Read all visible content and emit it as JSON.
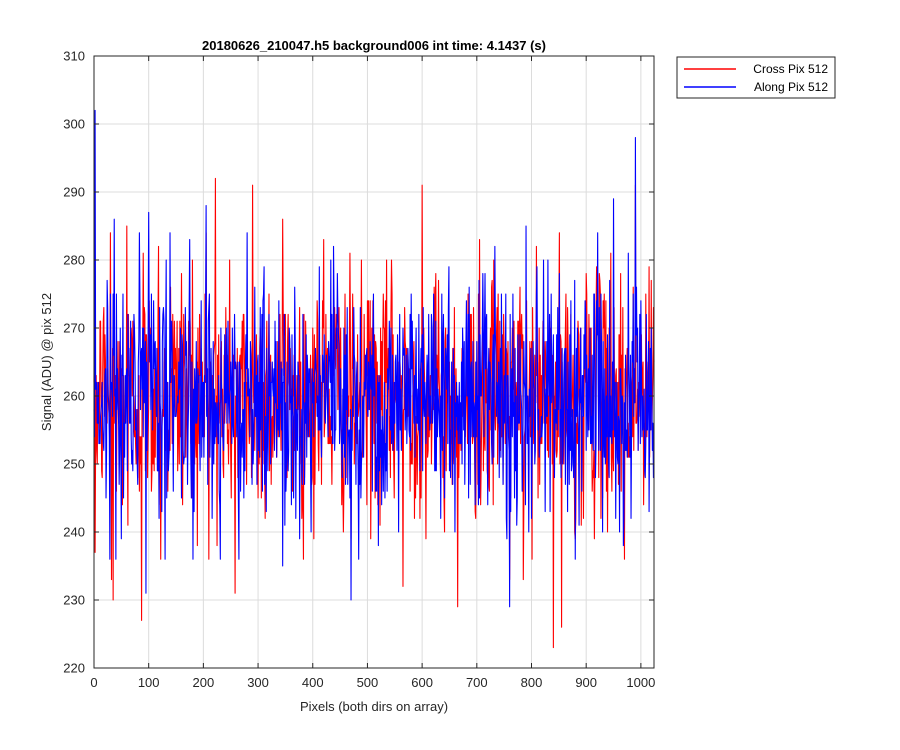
{
  "chart_data": {
    "type": "line",
    "title": "20180626_210047.h5  background006   int time: 4.1437 (s)",
    "xlabel": "Pixels (both dirs on array)",
    "ylabel": "Signal (ADU) @ pix 512",
    "xlim": [
      0,
      1024
    ],
    "ylim": [
      220,
      310
    ],
    "xticks": [
      0,
      100,
      200,
      300,
      400,
      500,
      600,
      700,
      800,
      900,
      1000
    ],
    "yticks": [
      220,
      230,
      240,
      250,
      260,
      270,
      280,
      290,
      300,
      310
    ],
    "grid": true,
    "legend_position": "outside-top-right",
    "noise_model": "approx. normal, mean ~260 ADU, sd ~9 ADU",
    "series": [
      {
        "name": "Cross Pix 512",
        "color": "#ff0000",
        "points": [
          [
            0,
            262
          ],
          [
            2,
            237
          ],
          [
            5,
            252
          ],
          [
            30,
            284
          ],
          [
            32,
            233
          ],
          [
            35,
            230
          ],
          [
            60,
            285
          ],
          [
            62,
            241
          ],
          [
            87,
            227
          ],
          [
            90,
            281
          ],
          [
            118,
            282
          ],
          [
            122,
            236
          ],
          [
            140,
            276
          ],
          [
            160,
            278
          ],
          [
            180,
            280
          ],
          [
            205,
            284
          ],
          [
            222,
            292
          ],
          [
            225,
            238
          ],
          [
            258,
            231
          ],
          [
            290,
            291
          ],
          [
            300,
            245
          ],
          [
            320,
            275
          ],
          [
            345,
            286
          ],
          [
            380,
            242
          ],
          [
            420,
            283
          ],
          [
            470,
            239
          ],
          [
            520,
            247
          ],
          [
            565,
            232
          ],
          [
            600,
            291
          ],
          [
            640,
            245
          ],
          [
            665,
            229
          ],
          [
            690,
            272
          ],
          [
            705,
            283
          ],
          [
            740,
            256
          ],
          [
            760,
            233
          ],
          [
            785,
            233
          ],
          [
            840,
            223
          ],
          [
            855,
            226
          ],
          [
            880,
            239
          ],
          [
            900,
            278
          ],
          [
            930,
            245
          ],
          [
            945,
            281
          ],
          [
            970,
            236
          ],
          [
            990,
            291
          ],
          [
            1005,
            244
          ],
          [
            1015,
            279
          ],
          [
            1024,
            265
          ]
        ]
      },
      {
        "name": "Along Pix 512",
        "color": "#0000ff",
        "points": [
          [
            0,
            258
          ],
          [
            2,
            302
          ],
          [
            5,
            262
          ],
          [
            37,
            286
          ],
          [
            50,
            239
          ],
          [
            95,
            231
          ],
          [
            100,
            287
          ],
          [
            130,
            236
          ],
          [
            175,
            283
          ],
          [
            205,
            288
          ],
          [
            230,
            244
          ],
          [
            265,
            236
          ],
          [
            280,
            284
          ],
          [
            315,
            243
          ],
          [
            345,
            235
          ],
          [
            355,
            249
          ],
          [
            375,
            263
          ],
          [
            410,
            255
          ],
          [
            445,
            278
          ],
          [
            470,
            230
          ],
          [
            520,
            238
          ],
          [
            585,
            256
          ],
          [
            605,
            262
          ],
          [
            660,
            240
          ],
          [
            700,
            268
          ],
          [
            745,
            275
          ],
          [
            760,
            229
          ],
          [
            790,
            285
          ],
          [
            800,
            242
          ],
          [
            830,
            280
          ],
          [
            880,
            236
          ],
          [
            900,
            252
          ],
          [
            950,
            289
          ],
          [
            968,
            238
          ],
          [
            990,
            298
          ],
          [
            1000,
            274
          ],
          [
            1015,
            243
          ],
          [
            1024,
            250
          ]
        ]
      }
    ]
  }
}
